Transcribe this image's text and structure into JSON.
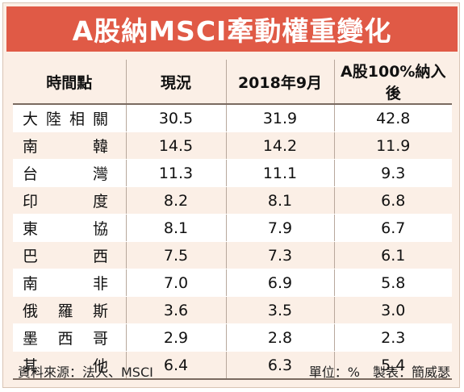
{
  "title": "A股納MSCI牽動權重變化",
  "columns": [
    "時間點",
    "現況",
    "2018年9月",
    "A股100%納入後"
  ],
  "rows": [
    {
      "label": "大陸相關",
      "current": "30.5",
      "sep2018": "31.9",
      "full": "42.8"
    },
    {
      "label": "南　　韓",
      "current": "14.5",
      "sep2018": "14.2",
      "full": "11.9"
    },
    {
      "label": "台　　灣",
      "current": "11.3",
      "sep2018": "11.1",
      "full": "9.3"
    },
    {
      "label": "印　　度",
      "current": "8.2",
      "sep2018": "8.1",
      "full": "6.8"
    },
    {
      "label": "東　　協",
      "current": "8.1",
      "sep2018": "7.9",
      "full": "6.7"
    },
    {
      "label": "巴　　西",
      "current": "7.5",
      "sep2018": "7.3",
      "full": "6.1"
    },
    {
      "label": "南　　非",
      "current": "7.0",
      "sep2018": "6.9",
      "full": "5.8"
    },
    {
      "label": "俄 羅 斯",
      "current": "3.6",
      "sep2018": "3.5",
      "full": "3.0"
    },
    {
      "label": "墨 西 哥",
      "current": "2.9",
      "sep2018": "2.8",
      "full": "2.3"
    },
    {
      "label": "其　　他",
      "current": "6.4",
      "sep2018": "6.3",
      "full": "5.4"
    }
  ],
  "footer": {
    "source": "資料來源：法人、MSCI",
    "unit": "單位：%　製表：簡威瑟"
  },
  "colors": {
    "title_bg": "#e05a46",
    "background": "#fbefe6"
  }
}
